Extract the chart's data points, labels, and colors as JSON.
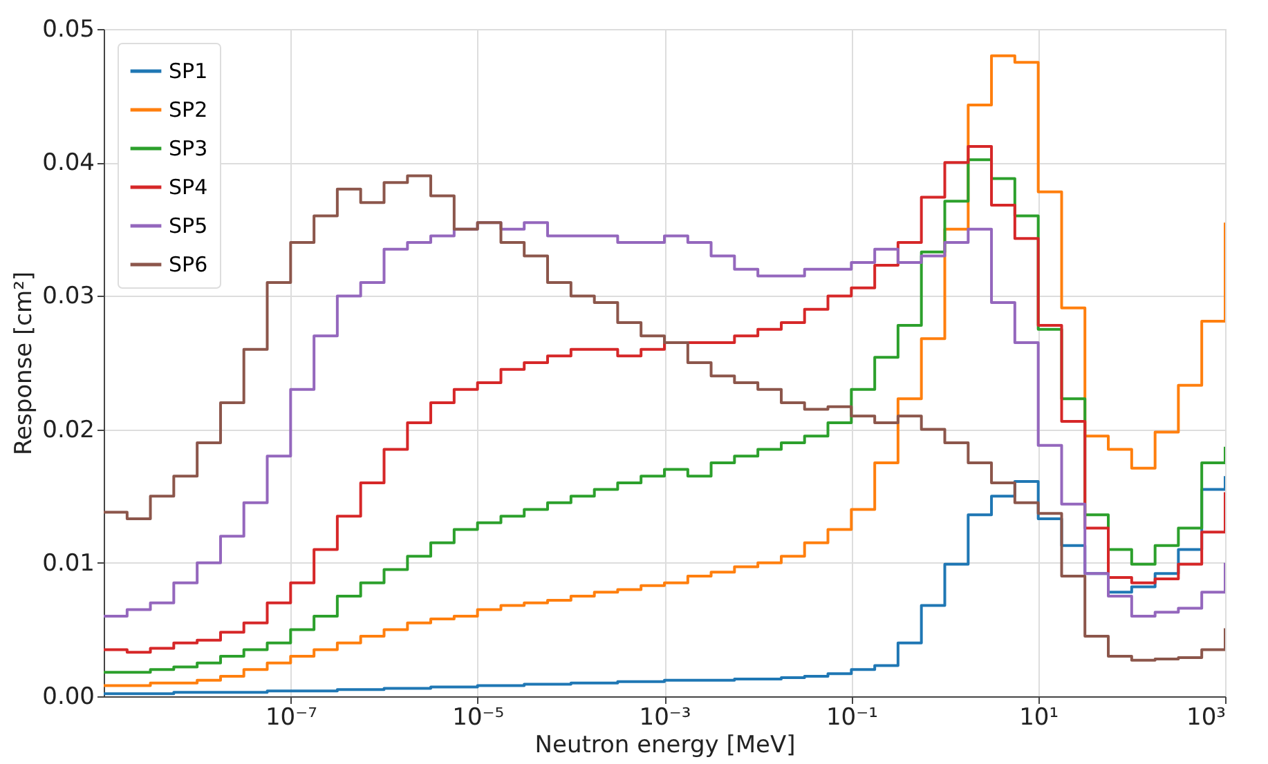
{
  "chart_data": {
    "type": "step",
    "xlabel": "Neutron energy [MeV]",
    "ylabel": "Response [cm²]",
    "log": "x",
    "grid": true,
    "legend": "top left",
    "line_style": "solid",
    "marker": "none",
    "xlim": [
      1e-09,
      1000
    ],
    "ylim": [
      0,
      0.05
    ],
    "xticks": [
      {
        "value": 1e-07,
        "label": "10⁻⁷"
      },
      {
        "value": 1e-05,
        "label": "10⁻⁵"
      },
      {
        "value": 0.001,
        "label": "10⁻³"
      },
      {
        "value": 0.1,
        "label": "10⁻¹"
      },
      {
        "value": 10,
        "label": "10¹"
      },
      {
        "value": 1000,
        "label": "10³"
      }
    ],
    "yticks": [
      {
        "value": 0,
        "label": "0.00"
      },
      {
        "value": 0.01,
        "label": "0.01"
      },
      {
        "value": 0.02,
        "label": "0.02"
      },
      {
        "value": 0.03,
        "label": "0.03"
      },
      {
        "value": 0.04,
        "label": "0.04"
      },
      {
        "value": 0.05,
        "label": "0.05"
      }
    ],
    "x": [
      1e-09,
      1.78e-09,
      3.16e-09,
      5.62e-09,
      1e-08,
      1.78e-08,
      3.16e-08,
      5.62e-08,
      1e-07,
      1.78e-07,
      3.16e-07,
      5.62e-07,
      1e-06,
      1.78e-06,
      3.16e-06,
      5.62e-06,
      1e-05,
      1.78e-05,
      3.16e-05,
      5.62e-05,
      0.0001,
      0.000178,
      0.000316,
      0.000562,
      0.001,
      0.00178,
      0.00316,
      0.00562,
      0.01,
      0.0178,
      0.0316,
      0.0562,
      0.1,
      0.178,
      0.316,
      0.562,
      1,
      1.78,
      3.16,
      5.62,
      10,
      17.8,
      31.6,
      56.2,
      100,
      178,
      316,
      562,
      1000
    ],
    "series": [
      {
        "name": "SP1",
        "color": "#1f77b4",
        "values": [
          0.0002,
          0.0002,
          0.0002,
          0.0003,
          0.0003,
          0.0003,
          0.0003,
          0.0004,
          0.0004,
          0.0004,
          0.0005,
          0.0005,
          0.0006,
          0.0006,
          0.0007,
          0.0007,
          0.0008,
          0.0008,
          0.0009,
          0.0009,
          0.001,
          0.001,
          0.0011,
          0.0011,
          0.0012,
          0.0012,
          0.0012,
          0.0013,
          0.0013,
          0.0014,
          0.0015,
          0.0017,
          0.002,
          0.0023,
          0.004,
          0.0068,
          0.0099,
          0.0136,
          0.015,
          0.0161,
          0.0133,
          0.0113,
          0.0092,
          0.0078,
          0.0082,
          0.0092,
          0.011,
          0.0155,
          0.0165
        ]
      },
      {
        "name": "SP2",
        "color": "#ff7f0e",
        "values": [
          0.0008,
          0.0008,
          0.001,
          0.001,
          0.0012,
          0.0015,
          0.002,
          0.0025,
          0.003,
          0.0035,
          0.004,
          0.0045,
          0.005,
          0.0055,
          0.0058,
          0.006,
          0.0065,
          0.0068,
          0.007,
          0.0072,
          0.0075,
          0.0078,
          0.008,
          0.0083,
          0.0085,
          0.009,
          0.0093,
          0.0097,
          0.01,
          0.0105,
          0.0115,
          0.0125,
          0.014,
          0.0175,
          0.0223,
          0.0268,
          0.035,
          0.0443,
          0.048,
          0.0475,
          0.0378,
          0.0291,
          0.0195,
          0.0185,
          0.0171,
          0.0198,
          0.0233,
          0.0281,
          0.0355
        ]
      },
      {
        "name": "SP3",
        "color": "#2ca02c",
        "values": [
          0.0018,
          0.0018,
          0.002,
          0.0022,
          0.0025,
          0.003,
          0.0035,
          0.004,
          0.005,
          0.006,
          0.0075,
          0.0085,
          0.0095,
          0.0105,
          0.0115,
          0.0125,
          0.013,
          0.0135,
          0.014,
          0.0145,
          0.015,
          0.0155,
          0.016,
          0.0165,
          0.017,
          0.0165,
          0.0175,
          0.018,
          0.0185,
          0.019,
          0.0195,
          0.0205,
          0.023,
          0.0254,
          0.0278,
          0.0333,
          0.0371,
          0.0402,
          0.0388,
          0.036,
          0.0275,
          0.0223,
          0.0136,
          0.011,
          0.0099,
          0.0113,
          0.0126,
          0.0175,
          0.0187
        ]
      },
      {
        "name": "SP4",
        "color": "#d62728",
        "values": [
          0.0035,
          0.0033,
          0.0036,
          0.004,
          0.0042,
          0.0048,
          0.0055,
          0.007,
          0.0085,
          0.011,
          0.0135,
          0.016,
          0.0185,
          0.0205,
          0.022,
          0.023,
          0.0235,
          0.0245,
          0.025,
          0.0255,
          0.026,
          0.026,
          0.0255,
          0.026,
          0.0265,
          0.0265,
          0.0265,
          0.027,
          0.0275,
          0.028,
          0.029,
          0.03,
          0.0306,
          0.0323,
          0.034,
          0.0374,
          0.04,
          0.0412,
          0.0368,
          0.0343,
          0.0278,
          0.0206,
          0.0126,
          0.0089,
          0.0085,
          0.0088,
          0.0099,
          0.0123,
          0.0153
        ]
      },
      {
        "name": "SP5",
        "color": "#9467bd",
        "values": [
          0.006,
          0.0065,
          0.007,
          0.0085,
          0.01,
          0.012,
          0.0145,
          0.018,
          0.023,
          0.027,
          0.03,
          0.031,
          0.0335,
          0.034,
          0.0345,
          0.035,
          0.0355,
          0.035,
          0.0355,
          0.0345,
          0.0345,
          0.0345,
          0.034,
          0.034,
          0.0345,
          0.034,
          0.033,
          0.032,
          0.0315,
          0.0315,
          0.032,
          0.032,
          0.0325,
          0.0335,
          0.0325,
          0.033,
          0.034,
          0.035,
          0.0295,
          0.0265,
          0.0188,
          0.0144,
          0.0092,
          0.0075,
          0.006,
          0.0063,
          0.0066,
          0.0078,
          0.01
        ]
      },
      {
        "name": "SP6",
        "color": "#8c564b",
        "values": [
          0.0138,
          0.0133,
          0.015,
          0.0165,
          0.019,
          0.022,
          0.026,
          0.031,
          0.034,
          0.036,
          0.038,
          0.037,
          0.0385,
          0.039,
          0.0375,
          0.035,
          0.0355,
          0.034,
          0.033,
          0.031,
          0.03,
          0.0295,
          0.028,
          0.027,
          0.0265,
          0.025,
          0.024,
          0.0235,
          0.023,
          0.022,
          0.0215,
          0.0217,
          0.021,
          0.0205,
          0.021,
          0.02,
          0.019,
          0.0175,
          0.016,
          0.0145,
          0.0137,
          0.009,
          0.0045,
          0.003,
          0.0027,
          0.0028,
          0.0029,
          0.0035,
          0.0051
        ]
      }
    ]
  }
}
